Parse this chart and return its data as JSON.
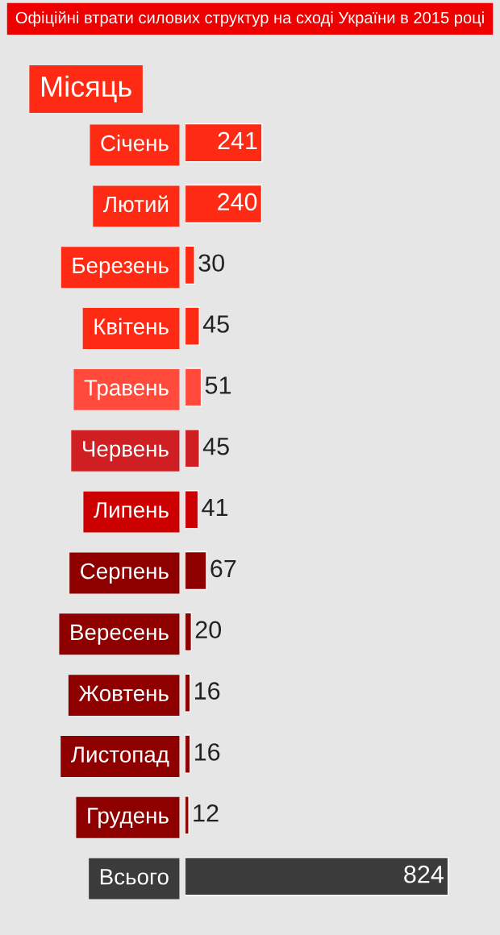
{
  "chart_data": {
    "type": "bar",
    "orientation": "horizontal",
    "title": "Офіційні втрати силових структур на сході України в 2015 році",
    "ylabel": "Місяць",
    "categories": [
      "Січень",
      "Лютий",
      "Березень",
      "Квітень",
      "Травень",
      "Червень",
      "Липень",
      "Серпень",
      "Вересень",
      "Жовтень",
      "Листопад",
      "Грудень",
      "Всього"
    ],
    "values": [
      241,
      240,
      30,
      45,
      51,
      45,
      41,
      67,
      20,
      16,
      16,
      12,
      824
    ],
    "colors": [
      "#fe2a14",
      "#fe2a14",
      "#fe2a14",
      "#fe2a14",
      "#ff4a3c",
      "#d01f22",
      "#cc0000",
      "#8e0000",
      "#8e0000",
      "#8e0000",
      "#8e0000",
      "#8e0000",
      "#3b3b3b"
    ],
    "data_labels": true,
    "tick_labels": "y"
  }
}
